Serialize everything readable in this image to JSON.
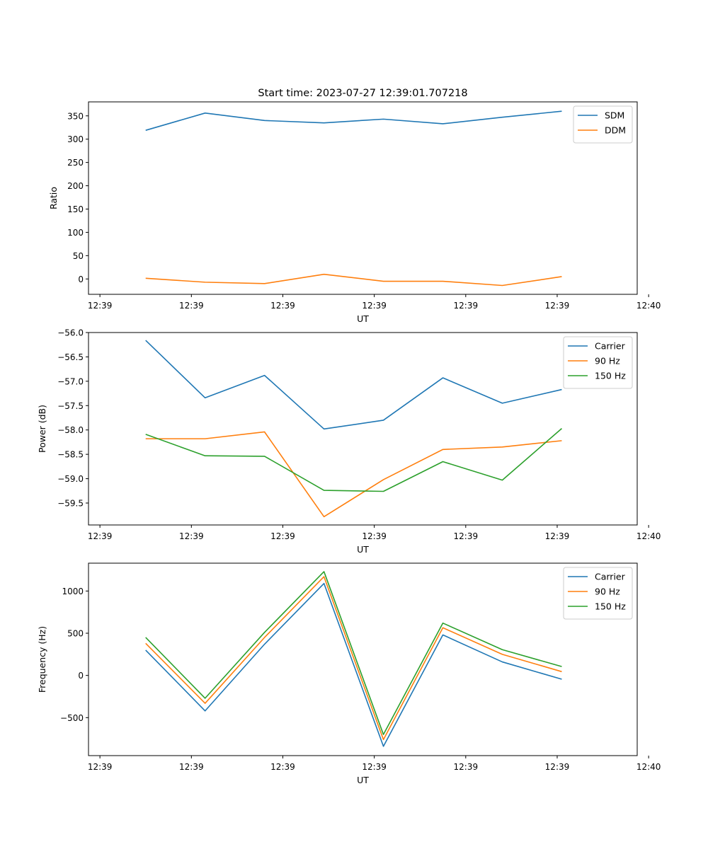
{
  "figure_title": "Start time: 2023-07-27 12:39:01.707218",
  "colors": {
    "blue": "#1f77b4",
    "orange": "#ff7f0e",
    "green": "#2ca02c"
  },
  "chart_data": [
    {
      "type": "line",
      "title": "Start time: 2023-07-27 12:39:01.707218",
      "xlabel": "UT",
      "ylabel": "Ratio",
      "xlim": [
        0,
        12
      ],
      "xticks": [
        0.25,
        2.25,
        4.25,
        6.25,
        8.25,
        10.25,
        12.25
      ],
      "xticklabels": [
        "12:39",
        "12:39",
        "12:39",
        "12:39",
        "12:39",
        "12:39",
        "12:40"
      ],
      "ylim": [
        -33,
        380
      ],
      "yticks": [
        0,
        50,
        100,
        150,
        200,
        250,
        300,
        350
      ],
      "yticklabels": [
        "0",
        "50",
        "100",
        "150",
        "200",
        "250",
        "300",
        "350"
      ],
      "legend": "top-right",
      "x": [
        1.25,
        2.55,
        3.85,
        5.15,
        6.45,
        7.75,
        9.05,
        10.35
      ],
      "series": [
        {
          "name": "SDM",
          "color": "#1f77b4",
          "values": [
            319,
            356,
            340,
            335,
            343,
            333,
            347,
            360
          ]
        },
        {
          "name": "DDM",
          "color": "#ff7f0e",
          "values": [
            1.5,
            -7,
            -10,
            10,
            -5,
            -5,
            -14,
            5
          ]
        }
      ]
    },
    {
      "type": "line",
      "xlabel": "UT",
      "ylabel": "Power (dB)",
      "xlim": [
        0,
        12
      ],
      "xticks": [
        0.25,
        2.25,
        4.25,
        6.25,
        8.25,
        10.25,
        12.25
      ],
      "xticklabels": [
        "12:39",
        "12:39",
        "12:39",
        "12:39",
        "12:39",
        "12:39",
        "12:40"
      ],
      "ylim": [
        -59.95,
        -56.0
      ],
      "yticks": [
        -56.0,
        -56.5,
        -57.0,
        -57.5,
        -58.0,
        -58.5,
        -59.0,
        -59.5
      ],
      "yticklabels": [
        "−56.0",
        "−56.5",
        "−57.0",
        "−57.5",
        "−58.0",
        "−58.5",
        "−59.0",
        "−59.5"
      ],
      "legend": "top-right",
      "x": [
        1.25,
        2.55,
        3.85,
        5.15,
        6.45,
        7.75,
        9.05,
        10.35
      ],
      "series": [
        {
          "name": "Carrier",
          "color": "#1f77b4",
          "values": [
            -56.16,
            -57.34,
            -56.88,
            -57.98,
            -57.8,
            -56.93,
            -57.45,
            -57.17
          ]
        },
        {
          "name": "90 Hz",
          "color": "#ff7f0e",
          "values": [
            -58.18,
            -58.18,
            -58.04,
            -59.78,
            -59.02,
            -58.4,
            -58.35,
            -58.22
          ]
        },
        {
          "name": "150 Hz",
          "color": "#2ca02c",
          "values": [
            -58.09,
            -58.53,
            -58.54,
            -59.24,
            -59.26,
            -58.65,
            -59.03,
            -57.97
          ]
        }
      ]
    },
    {
      "type": "line",
      "xlabel": "UT",
      "ylabel": "Frequency (Hz)",
      "xlim": [
        0,
        12
      ],
      "xticks": [
        0.25,
        2.25,
        4.25,
        6.25,
        8.25,
        10.25,
        12.25
      ],
      "xticklabels": [
        "12:39",
        "12:39",
        "12:39",
        "12:39",
        "12:39",
        "12:39",
        "12:40"
      ],
      "ylim": [
        -950,
        1330
      ],
      "yticks": [
        -500,
        0,
        500,
        1000
      ],
      "yticklabels": [
        "−500",
        "0",
        "500",
        "1000"
      ],
      "legend": "top-right",
      "x": [
        1.25,
        2.55,
        3.85,
        5.15,
        6.45,
        7.75,
        9.05,
        10.35
      ],
      "series": [
        {
          "name": "Carrier",
          "color": "#1f77b4",
          "values": [
            300,
            -420,
            370,
            1090,
            -840,
            480,
            160,
            -45
          ]
        },
        {
          "name": "90 Hz",
          "color": "#ff7f0e",
          "values": [
            380,
            -330,
            450,
            1170,
            -760,
            565,
            250,
            45
          ]
        },
        {
          "name": "150 Hz",
          "color": "#2ca02c",
          "values": [
            450,
            -270,
            510,
            1230,
            -700,
            620,
            305,
            105
          ]
        }
      ]
    }
  ]
}
